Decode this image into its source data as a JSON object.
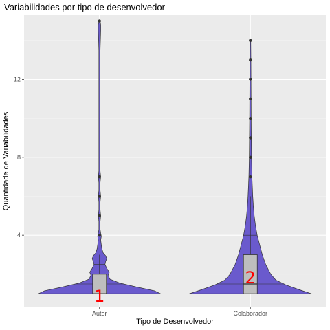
{
  "chart_data": {
    "type": "violin",
    "title": "Variabilidades por tipo de desenvolvedor",
    "xlabel": "Tipo de Desenvolvedor",
    "ylabel": "Quantidade de Variabilidades",
    "categories": [
      "Autor",
      "Colaborador"
    ],
    "ylim": [
      0.3,
      15.3
    ],
    "yticks": [
      4,
      8,
      12
    ],
    "grid": true,
    "fill_color": "#6a5acd",
    "box_color": "#bebebe",
    "annotation_color": "#ff0000",
    "groups": [
      {
        "category": "Autor",
        "box": {
          "q1": 1,
          "median": 1,
          "q3": 2,
          "whisker_low": 1,
          "whisker_high": 3
        },
        "quantiles": [
          1.5,
          2.5
        ],
        "outliers": [
          4,
          5,
          6,
          7,
          15
        ],
        "annotation": "1",
        "annotation_y": 0.9,
        "density": [
          [
            1.0,
            1.0
          ],
          [
            1.15,
            0.9
          ],
          [
            1.35,
            0.6
          ],
          [
            1.55,
            0.33
          ],
          [
            1.75,
            0.17
          ],
          [
            1.95,
            0.14
          ],
          [
            2.1,
            0.16
          ],
          [
            2.3,
            0.12
          ],
          [
            2.5,
            0.09
          ],
          [
            2.65,
            0.1
          ],
          [
            2.8,
            0.12
          ],
          [
            2.95,
            0.1
          ],
          [
            3.1,
            0.06
          ],
          [
            3.3,
            0.04
          ],
          [
            3.5,
            0.03
          ],
          [
            3.75,
            0.02
          ],
          [
            3.95,
            0.03
          ],
          [
            4.1,
            0.02
          ],
          [
            4.3,
            0.01
          ],
          [
            4.7,
            0.01
          ],
          [
            5.0,
            0.02
          ],
          [
            5.3,
            0.01
          ],
          [
            5.7,
            0.01
          ],
          [
            6.0,
            0.02
          ],
          [
            6.3,
            0.01
          ],
          [
            6.7,
            0.01
          ],
          [
            7.0,
            0.02
          ],
          [
            7.3,
            0.01
          ],
          [
            8.0,
            0.01
          ],
          [
            13.5,
            0.01
          ],
          [
            14.0,
            0.015
          ],
          [
            14.5,
            0.02
          ],
          [
            14.8,
            0.02
          ],
          [
            15.0,
            0.01
          ]
        ]
      },
      {
        "category": "Colaborador",
        "box": {
          "q1": 1,
          "median": 1.5,
          "q3": 3,
          "whisker_low": 1,
          "whisker_high": 6
        },
        "quantiles": [
          4,
          1.5
        ],
        "outliers": [
          7,
          8,
          9,
          10,
          11,
          12,
          13,
          14
        ],
        "annotation": "2",
        "annotation_y": 1.85,
        "density": [
          [
            1.0,
            0.72
          ],
          [
            1.2,
            0.58
          ],
          [
            1.45,
            0.42
          ],
          [
            1.7,
            0.3
          ],
          [
            2.0,
            0.24
          ],
          [
            2.5,
            0.18
          ],
          [
            3.0,
            0.14
          ],
          [
            3.5,
            0.11
          ],
          [
            4.0,
            0.08
          ],
          [
            4.5,
            0.06
          ],
          [
            5.0,
            0.045
          ],
          [
            5.5,
            0.035
          ],
          [
            6.0,
            0.028
          ],
          [
            7.0,
            0.018
          ],
          [
            8.0,
            0.013
          ],
          [
            9.0,
            0.011
          ],
          [
            10.0,
            0.009
          ],
          [
            11.0,
            0.008
          ],
          [
            12.0,
            0.007
          ],
          [
            13.0,
            0.006
          ],
          [
            14.0,
            0.004
          ]
        ]
      }
    ]
  }
}
